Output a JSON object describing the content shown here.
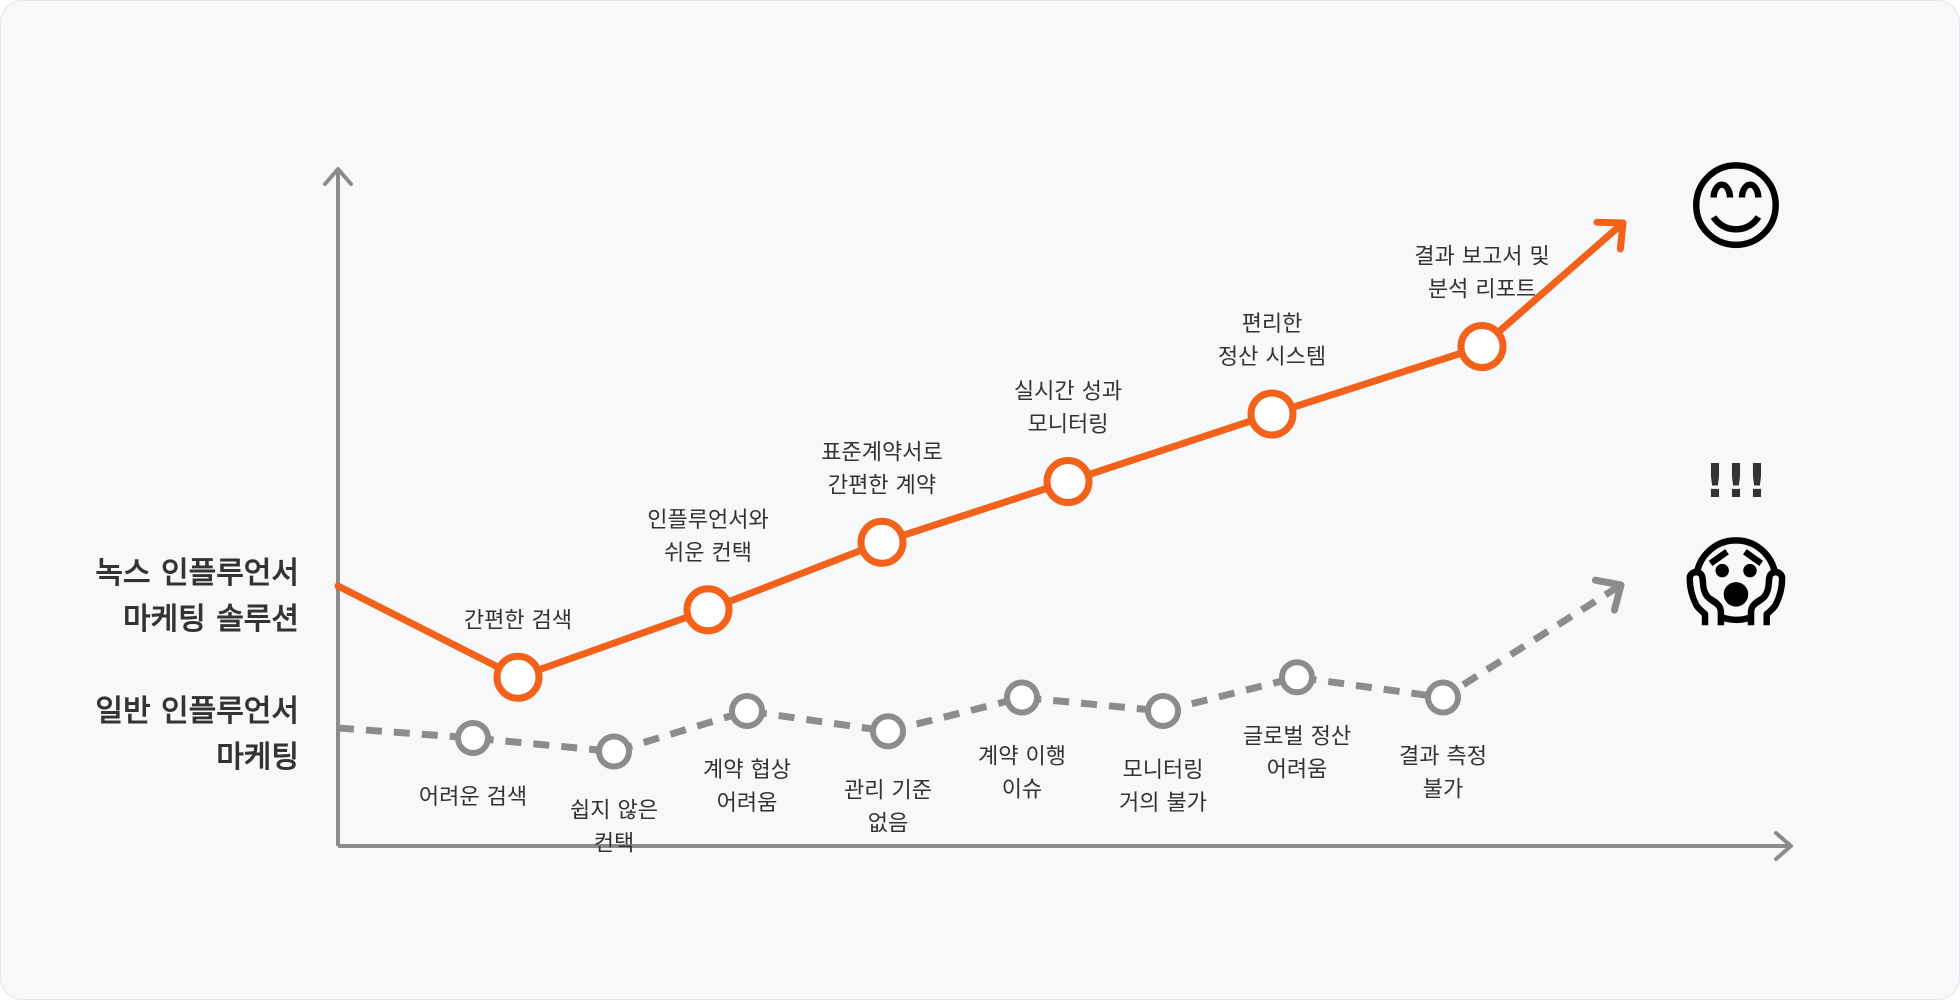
{
  "series": [
    {
      "name_lines": [
        "녹스 인플루언서",
        "마케팅 솔루션"
      ],
      "color": "#f2621a",
      "style": "solid",
      "emoji": "😊",
      "steps": [
        {
          "lines": [
            "간편한 검색"
          ],
          "level": 0.25
        },
        {
          "lines": [
            "인플루언서와",
            "쉬운 컨택"
          ],
          "level": 0.35
        },
        {
          "lines": [
            "표준계약서로",
            "간편한 계약"
          ],
          "level": 0.45
        },
        {
          "lines": [
            "실시간 성과",
            "모니터링"
          ],
          "level": 0.54
        },
        {
          "lines": [
            "편리한",
            "정산 시스템"
          ],
          "level": 0.64
        },
        {
          "lines": [
            "결과 보고서 및",
            "분석 리포트"
          ],
          "level": 0.74
        }
      ]
    },
    {
      "name_lines": [
        "일반 인플루언서",
        "마케팅"
      ],
      "color": "#8c8c8c",
      "style": "dashed",
      "emoji": "😱",
      "exclaim": "!!!",
      "steps": [
        {
          "lines": [
            "어려운 검색"
          ],
          "level": 0.16
        },
        {
          "lines": [
            "쉽지 않은",
            "컨택"
          ],
          "level": 0.14
        },
        {
          "lines": [
            "계약 협상",
            "어려움"
          ],
          "level": 0.2
        },
        {
          "lines": [
            "관리 기준",
            "없음"
          ],
          "level": 0.17
        },
        {
          "lines": [
            "계약 이행",
            "이슈"
          ],
          "level": 0.22
        },
        {
          "lines": [
            "모니터링",
            "거의 불가"
          ],
          "level": 0.2
        },
        {
          "lines": [
            "글로벌 정산",
            "어려움"
          ],
          "level": 0.25
        },
        {
          "lines": [
            "결과 측정",
            "불가"
          ],
          "level": 0.22
        }
      ]
    }
  ]
}
